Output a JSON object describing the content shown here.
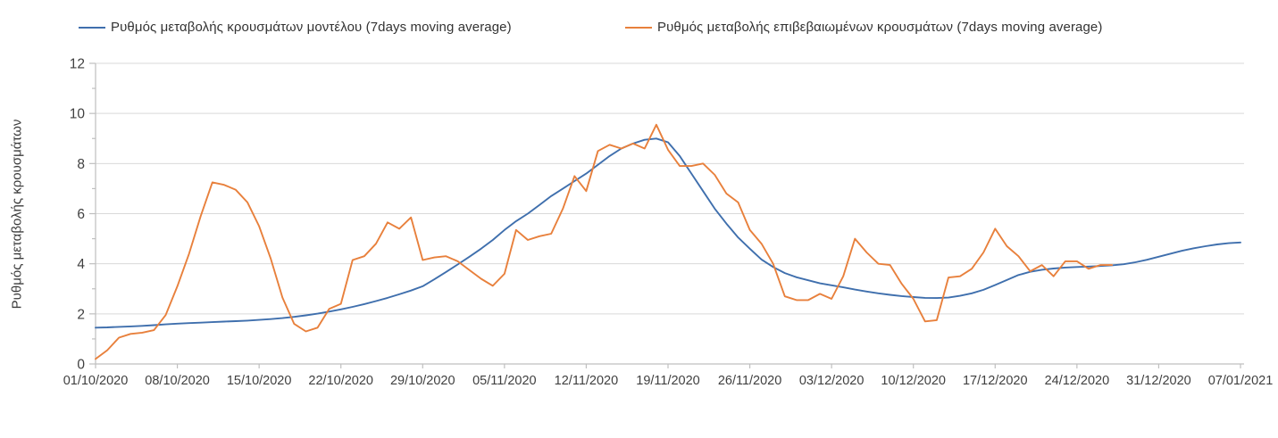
{
  "legend": {
    "items": [
      {
        "id": "model",
        "label": "Ρυθμός μεταβολής κρουσμάτων μοντέλου (7days moving average)",
        "color": "#3f6fad"
      },
      {
        "id": "confirmed",
        "label": "Ρυθμός μεταβολής επιβεβαιωμένων κρουσμάτων (7days moving average)",
        "color": "#e8803c"
      }
    ]
  },
  "y_axis": {
    "title": "Ρυθμός μεταβολής κρουσμάτων",
    "tick_labels": [
      "0",
      "2",
      "4",
      "6",
      "8",
      "10",
      "12"
    ],
    "min": 0,
    "max": 12,
    "major_step": 2,
    "minor_step": 1
  },
  "x_axis": {
    "tick_labels": [
      "01/10/2020",
      "08/10/2020",
      "15/10/2020",
      "22/10/2020",
      "29/10/2020",
      "05/11/2020",
      "12/11/2020",
      "19/11/2020",
      "26/11/2020",
      "03/12/2020",
      "10/12/2020",
      "17/12/2020",
      "24/12/2020",
      "31/12/2020",
      "07/01/2021"
    ],
    "days_per_tick": 7
  },
  "colors": {
    "grid": "#d9d9d9",
    "axis": "#bfbfbf",
    "tick_text": "#404040",
    "series_model": "#3f6fad",
    "series_confirmed": "#e8803c"
  },
  "chart_data": {
    "type": "line",
    "title": "",
    "xlabel": "",
    "ylabel": "Ρυθμός μεταβολής κρουσμάτων",
    "ylim": [
      0,
      12
    ],
    "grid": "horizontal",
    "legend_position": "top",
    "x_tick_labels": [
      "01/10/2020",
      "08/10/2020",
      "15/10/2020",
      "22/10/2020",
      "29/10/2020",
      "05/11/2020",
      "12/11/2020",
      "19/11/2020",
      "26/11/2020",
      "03/12/2020",
      "10/12/2020",
      "17/12/2020",
      "24/12/2020",
      "31/12/2020",
      "07/01/2021"
    ],
    "x_is_daily": true,
    "n_days": 99,
    "series": [
      {
        "name": "Ρυθμός μεταβολής κρουσμάτων μοντέλου (7days moving average)",
        "color": "#3f6fad",
        "values": [
          1.45,
          1.46,
          1.48,
          1.5,
          1.52,
          1.55,
          1.58,
          1.61,
          1.63,
          1.65,
          1.67,
          1.69,
          1.71,
          1.73,
          1.76,
          1.79,
          1.83,
          1.88,
          1.94,
          2.01,
          2.09,
          2.18,
          2.28,
          2.39,
          2.51,
          2.64,
          2.78,
          2.93,
          3.1,
          3.38,
          3.67,
          3.97,
          4.28,
          4.6,
          4.95,
          5.35,
          5.7,
          6.0,
          6.35,
          6.7,
          7.0,
          7.3,
          7.6,
          7.95,
          8.3,
          8.6,
          8.8,
          8.95,
          9.0,
          8.85,
          8.3,
          7.6,
          6.9,
          6.2,
          5.6,
          5.05,
          4.6,
          4.17,
          3.87,
          3.63,
          3.46,
          3.34,
          3.22,
          3.14,
          3.06,
          2.97,
          2.89,
          2.82,
          2.76,
          2.71,
          2.67,
          2.64,
          2.63,
          2.65,
          2.72,
          2.82,
          2.96,
          3.15,
          3.35,
          3.55,
          3.68,
          3.76,
          3.81,
          3.85,
          3.87,
          3.89,
          3.91,
          3.94,
          3.98,
          4.06,
          4.16,
          4.28,
          4.4,
          4.52,
          4.62,
          4.7,
          4.77,
          4.82,
          4.85
        ]
      },
      {
        "name": "Ρυθμός μεταβολής επιβεβαιωμένων κρουσμάτων (7days moving average)",
        "color": "#e8803c",
        "values": [
          0.2,
          0.55,
          1.05,
          1.2,
          1.25,
          1.35,
          1.95,
          3.1,
          4.4,
          5.9,
          7.25,
          7.15,
          6.95,
          6.45,
          5.5,
          4.2,
          2.65,
          1.6,
          1.3,
          1.45,
          2.2,
          2.4,
          4.15,
          4.3,
          4.8,
          5.65,
          5.4,
          5.85,
          4.15,
          4.25,
          4.3,
          4.1,
          3.75,
          3.4,
          3.12,
          3.6,
          5.35,
          4.95,
          5.1,
          5.2,
          6.2,
          7.5,
          6.9,
          8.5,
          8.75,
          8.6,
          8.8,
          8.6,
          9.55,
          8.55,
          7.9,
          7.9,
          8.0,
          7.55,
          6.8,
          6.45,
          5.35,
          4.8,
          4.0,
          2.7,
          2.55,
          2.55,
          2.8,
          2.6,
          3.5,
          5.0,
          4.45,
          4.0,
          3.95,
          3.2,
          2.6,
          1.7,
          1.75,
          3.45,
          3.5,
          3.8,
          4.45,
          5.4,
          4.7,
          4.3,
          3.7,
          3.95,
          3.5,
          4.1,
          4.1,
          3.8,
          3.95,
          3.95
        ]
      }
    ]
  }
}
